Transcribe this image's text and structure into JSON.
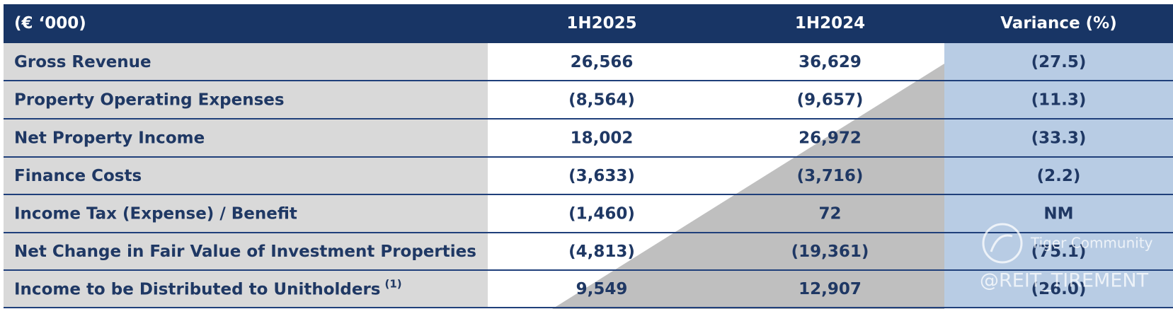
{
  "table": {
    "header": [
      "(€ ‘000)",
      "1H2025",
      "1H2024",
      "Variance (%)"
    ],
    "rows": [
      {
        "cells": [
          "Gross Revenue",
          "26,566",
          "36,629",
          "(27.5)"
        ]
      },
      {
        "cells": [
          "Property Operating Expenses",
          "(8,564)",
          "(9,657)",
          "(11.3)"
        ]
      },
      {
        "cells": [
          "Net Property Income",
          "18,002",
          "26,972",
          "(33.3)"
        ]
      },
      {
        "cells": [
          "Finance Costs",
          "(3,633)",
          "(3,716)",
          "(2.2)"
        ]
      },
      {
        "cells": [
          "Income Tax (Expense) / Benefit",
          "(1,460)",
          "72",
          "NM"
        ]
      },
      {
        "cells": [
          "Net Change in Fair Value of Investment Properties",
          "(4,813)",
          "(19,361)",
          "(75.1)"
        ]
      },
      {
        "cells": [
          "Income to be Distributed to Unitholders",
          "9,549",
          "12,907",
          "(26.0)"
        ],
        "note": "(1)"
      }
    ]
  },
  "watermark": {
    "brand": "Tiger Community",
    "handle": "@REIT_TIREMENT"
  }
}
